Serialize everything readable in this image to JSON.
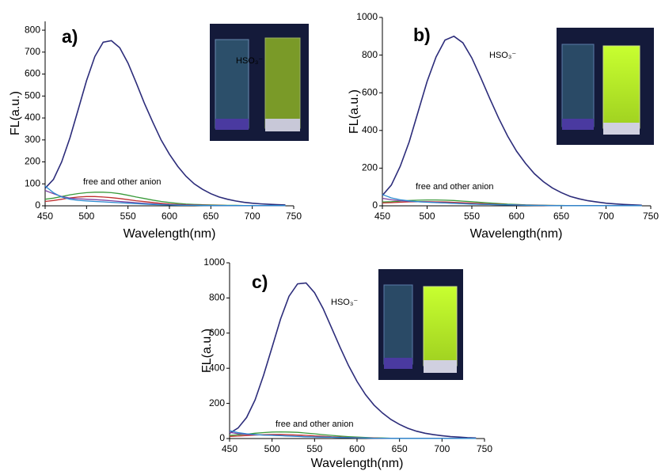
{
  "chart_data": [
    {
      "type": "line",
      "panel_label": "a)",
      "xlabel": "Wavelength(nm)",
      "ylabel": "FL(a.u.)",
      "annotations": [
        "HSO₃⁻",
        "free and other anion"
      ],
      "xlim": [
        450,
        750
      ],
      "xticks": [
        450,
        500,
        550,
        600,
        650,
        700,
        750
      ],
      "ylim": [
        0,
        840
      ],
      "yticks": [
        0,
        100,
        200,
        300,
        400,
        500,
        600,
        700,
        800
      ],
      "x": [
        450,
        460,
        470,
        480,
        490,
        500,
        510,
        520,
        530,
        540,
        550,
        560,
        570,
        580,
        590,
        600,
        610,
        620,
        630,
        640,
        650,
        660,
        670,
        680,
        690,
        700,
        710,
        720,
        730,
        740
      ],
      "series": [
        {
          "color": "#2c2c7a",
          "values": [
            80,
            120,
            200,
            310,
            440,
            570,
            680,
            745,
            752,
            720,
            650,
            560,
            465,
            380,
            300,
            235,
            180,
            135,
            100,
            75,
            55,
            40,
            30,
            22,
            16,
            12,
            9,
            7,
            5,
            4
          ]
        },
        {
          "color": "#3a9a3a",
          "values": [
            30,
            35,
            42,
            50,
            56,
            60,
            62,
            62,
            60,
            55,
            48,
            40,
            33,
            26,
            20,
            15,
            11,
            8,
            6,
            5,
            4,
            3,
            2,
            2,
            1,
            1,
            1,
            1,
            1,
            1
          ]
        },
        {
          "color": "#c03030",
          "values": [
            20,
            24,
            30,
            36,
            40,
            42,
            42,
            40,
            37,
            33,
            28,
            23,
            19,
            15,
            11,
            8,
            6,
            5,
            4,
            3,
            2,
            2,
            1,
            1,
            1,
            1,
            1,
            1,
            1,
            1
          ]
        },
        {
          "color": "#7b3f9f",
          "values": [
            70,
            55,
            42,
            35,
            32,
            30,
            28,
            26,
            23,
            20,
            17,
            14,
            11,
            9,
            7,
            5,
            4,
            3,
            2,
            2,
            1,
            1,
            1,
            1,
            1,
            1,
            1,
            1,
            1,
            1
          ]
        },
        {
          "color": "#2a8ad0",
          "values": [
            90,
            60,
            40,
            30,
            25,
            22,
            20,
            18,
            16,
            14,
            12,
            10,
            8,
            6,
            5,
            4,
            3,
            2,
            2,
            1,
            1,
            1,
            1,
            1,
            1,
            1,
            1,
            1,
            1,
            1
          ]
        }
      ]
    },
    {
      "type": "line",
      "panel_label": "b)",
      "xlabel": "Wavelength(nm)",
      "ylabel": "FL(a.u.)",
      "annotations": [
        "HSO₃⁻",
        "free and other anion"
      ],
      "xlim": [
        450,
        750
      ],
      "xticks": [
        450,
        500,
        550,
        600,
        650,
        700,
        750
      ],
      "ylim": [
        0,
        1000
      ],
      "yticks": [
        0,
        200,
        400,
        600,
        800,
        1000
      ],
      "x": [
        450,
        460,
        470,
        480,
        490,
        500,
        510,
        520,
        530,
        540,
        550,
        560,
        570,
        580,
        590,
        600,
        610,
        620,
        630,
        640,
        650,
        660,
        670,
        680,
        690,
        700,
        710,
        720,
        730,
        740
      ],
      "series": [
        {
          "color": "#2c2c7a",
          "values": [
            55,
            110,
            210,
            340,
            500,
            660,
            790,
            880,
            900,
            865,
            785,
            680,
            570,
            465,
            370,
            290,
            225,
            170,
            128,
            95,
            70,
            50,
            37,
            27,
            20,
            14,
            10,
            7,
            5,
            3
          ]
        },
        {
          "color": "#3a9a3a",
          "values": [
            20,
            22,
            25,
            28,
            30,
            31,
            31,
            30,
            28,
            25,
            22,
            18,
            15,
            12,
            9,
            7,
            5,
            4,
            3,
            2,
            2,
            1,
            1,
            1,
            1,
            1,
            1,
            1,
            1,
            1
          ]
        },
        {
          "color": "#c03030",
          "values": [
            15,
            17,
            19,
            21,
            22,
            22,
            21,
            20,
            18,
            16,
            14,
            12,
            10,
            8,
            6,
            5,
            4,
            3,
            2,
            2,
            1,
            1,
            1,
            1,
            1,
            1,
            1,
            1,
            1,
            1
          ]
        },
        {
          "color": "#7b3f9f",
          "values": [
            40,
            32,
            27,
            24,
            22,
            20,
            18,
            16,
            14,
            12,
            10,
            8,
            7,
            6,
            5,
            4,
            3,
            2,
            2,
            1,
            1,
            1,
            1,
            1,
            1,
            1,
            1,
            1,
            1,
            1
          ]
        },
        {
          "color": "#2a8ad0",
          "values": [
            60,
            42,
            32,
            26,
            22,
            19,
            17,
            15,
            13,
            11,
            9,
            8,
            7,
            6,
            5,
            4,
            3,
            2,
            2,
            1,
            1,
            1,
            1,
            1,
            1,
            1,
            1,
            1,
            1,
            1
          ]
        }
      ]
    },
    {
      "type": "line",
      "panel_label": "c)",
      "xlabel": "Wavelength(nm)",
      "ylabel": "FL(a.u.)",
      "annotations": [
        "HSO₃⁻",
        "free and other anion"
      ],
      "xlim": [
        450,
        750
      ],
      "xticks": [
        450,
        500,
        550,
        600,
        650,
        700,
        750
      ],
      "ylim": [
        0,
        1000
      ],
      "yticks": [
        0,
        200,
        400,
        600,
        800,
        1000
      ],
      "x": [
        450,
        460,
        470,
        480,
        490,
        500,
        510,
        520,
        530,
        540,
        550,
        560,
        570,
        580,
        590,
        600,
        610,
        620,
        630,
        640,
        650,
        660,
        670,
        680,
        690,
        700,
        710,
        720,
        730,
        740
      ],
      "series": [
        {
          "color": "#2c2c7a",
          "values": [
            30,
            60,
            120,
            220,
            360,
            520,
            680,
            810,
            880,
            885,
            830,
            740,
            630,
            520,
            415,
            325,
            250,
            190,
            145,
            108,
            80,
            58,
            42,
            30,
            22,
            16,
            11,
            8,
            5,
            3
          ]
        },
        {
          "color": "#3a9a3a",
          "values": [
            18,
            21,
            25,
            30,
            34,
            37,
            38,
            37,
            35,
            31,
            27,
            22,
            18,
            14,
            11,
            8,
            6,
            4,
            3,
            2,
            2,
            1,
            1,
            1,
            1,
            1,
            1,
            1,
            1,
            1
          ]
        },
        {
          "color": "#c03030",
          "values": [
            12,
            14,
            17,
            20,
            22,
            23,
            23,
            22,
            20,
            18,
            15,
            13,
            10,
            8,
            6,
            5,
            4,
            3,
            2,
            2,
            1,
            1,
            1,
            1,
            1,
            1,
            1,
            1,
            1,
            1
          ]
        },
        {
          "color": "#7b3f9f",
          "values": [
            35,
            28,
            24,
            22,
            20,
            19,
            17,
            15,
            13,
            11,
            9,
            8,
            7,
            6,
            5,
            4,
            3,
            2,
            2,
            1,
            1,
            1,
            1,
            1,
            1,
            1,
            1,
            1,
            1,
            1
          ]
        },
        {
          "color": "#2a8ad0",
          "values": [
            45,
            34,
            27,
            23,
            20,
            18,
            16,
            14,
            12,
            10,
            9,
            8,
            7,
            6,
            5,
            4,
            3,
            2,
            2,
            1,
            1,
            1,
            1,
            1,
            1,
            1,
            1,
            1,
            1,
            1
          ]
        }
      ]
    }
  ]
}
